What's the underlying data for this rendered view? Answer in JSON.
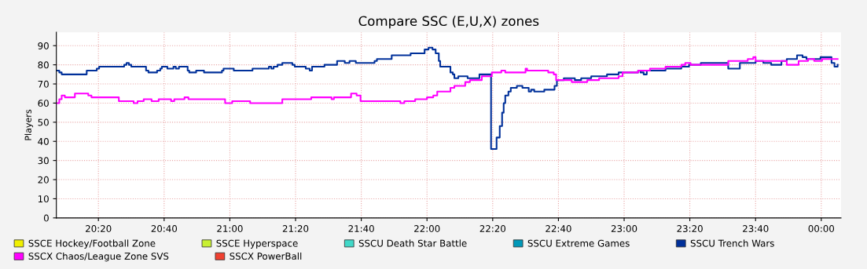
{
  "chart_data": {
    "type": "step",
    "title": "Compare SSC (E,U,X) zones",
    "ylabel": "Players",
    "xlim": [
      20.12,
      24.1
    ],
    "ylim": [
      0,
      97
    ],
    "xticks": [
      {
        "value": 20.3333,
        "label": "20:20"
      },
      {
        "value": 20.6667,
        "label": "20:40"
      },
      {
        "value": 21.0,
        "label": "21:00"
      },
      {
        "value": 21.3333,
        "label": "21:20"
      },
      {
        "value": 21.6667,
        "label": "21:40"
      },
      {
        "value": 22.0,
        "label": "22:00"
      },
      {
        "value": 22.3333,
        "label": "22:20"
      },
      {
        "value": 22.6667,
        "label": "22:40"
      },
      {
        "value": 23.0,
        "label": "23:00"
      },
      {
        "value": 23.3333,
        "label": "23:20"
      },
      {
        "value": 23.6667,
        "label": "23:40"
      },
      {
        "value": 24.0,
        "label": "00:00"
      }
    ],
    "yticks": [
      0,
      10,
      20,
      30,
      40,
      50,
      60,
      70,
      80,
      90
    ],
    "grid": true,
    "legend": "bottom",
    "series": [
      {
        "name": "SSCE Hockey/Football Zone",
        "color": "#f0f000"
      },
      {
        "name": "SSCE Hyperspace",
        "color": "#c8f032"
      },
      {
        "name": "SSCU Death Star Battle",
        "color": "#40d8c8"
      },
      {
        "name": "SSCU Extreme Games",
        "color": "#0098b8"
      },
      {
        "name": "SSCU Trench Wars",
        "color": "#00309a",
        "x": [
          20.123,
          20.135,
          20.147,
          20.266,
          20.274,
          20.313,
          20.325,
          20.337,
          20.452,
          20.464,
          20.476,
          20.488,
          20.5,
          20.563,
          20.575,
          20.587,
          20.619,
          20.631,
          20.647,
          20.655,
          20.675,
          20.683,
          20.706,
          20.714,
          20.726,
          20.742,
          20.77,
          20.786,
          20.794,
          20.821,
          20.829,
          20.861,
          20.869,
          20.948,
          20.96,
          20.968,
          21.012,
          21.02,
          21.107,
          21.115,
          21.187,
          21.198,
          21.21,
          21.222,
          21.242,
          21.266,
          21.306,
          21.317,
          21.329,
          21.369,
          21.385,
          21.405,
          21.417,
          21.472,
          21.48,
          21.536,
          21.544,
          21.571,
          21.583,
          21.607,
          21.631,
          21.639,
          21.722,
          21.734,
          21.746,
          21.813,
          21.821,
          21.909,
          21.917,
          21.976,
          21.988,
          22.008,
          22.028,
          22.044,
          22.06,
          22.067,
          22.107,
          22.119,
          22.131,
          22.139,
          22.159,
          22.194,
          22.206,
          22.258,
          22.266,
          22.317,
          22.325,
          22.345,
          22.353,
          22.369,
          22.381,
          22.389,
          22.397,
          22.413,
          22.425,
          22.456,
          22.484,
          22.516,
          22.528,
          22.544,
          22.583,
          22.595,
          22.635,
          22.647,
          22.659,
          22.683,
          22.694,
          22.734,
          22.75,
          22.782,
          22.833,
          22.913,
          22.972,
          23.032,
          23.071,
          23.083,
          23.099,
          23.115,
          23.151,
          23.21,
          23.29,
          23.329,
          23.389,
          23.508,
          23.528,
          23.567,
          23.587,
          23.647,
          23.667,
          23.706,
          23.746,
          23.786,
          23.798,
          23.825,
          23.869,
          23.877,
          23.905,
          23.925,
          23.996,
          24.036,
          24.052,
          24.067,
          24.083
        ],
        "values": [
          77,
          76,
          75,
          75,
          77,
          77,
          78,
          79,
          79,
          80,
          81,
          80,
          79,
          79,
          77,
          76,
          76,
          77,
          78,
          79,
          79,
          78,
          78,
          79,
          78,
          79,
          79,
          77,
          76,
          76,
          77,
          77,
          76,
          76,
          77,
          78,
          78,
          77,
          77,
          78,
          78,
          79,
          78,
          79,
          80,
          81,
          81,
          80,
          79,
          79,
          78,
          77,
          79,
          79,
          80,
          80,
          82,
          82,
          81,
          82,
          82,
          81,
          81,
          82,
          83,
          83,
          85,
          85,
          86,
          86,
          88,
          89,
          88,
          86,
          82,
          79,
          79,
          76,
          75,
          73,
          74,
          74,
          73,
          73,
          75,
          75,
          36,
          36,
          42,
          48,
          55,
          60,
          64,
          66,
          68,
          69,
          68,
          66,
          67,
          66,
          66,
          67,
          67,
          69,
          72,
          72,
          73,
          73,
          72,
          73,
          74,
          75,
          76,
          76,
          77,
          76,
          75,
          77,
          77,
          78,
          79,
          80,
          81,
          81,
          78,
          78,
          81,
          81,
          82,
          81,
          80,
          80,
          82,
          83,
          83,
          85,
          84,
          83,
          84,
          84,
          81,
          79,
          80
        ]
      },
      {
        "name": "SSCX Chaos/League Zone SVS",
        "color": "#ff00ff",
        "x": [
          20.123,
          20.135,
          20.147,
          20.163,
          20.202,
          20.214,
          20.266,
          20.282,
          20.298,
          20.425,
          20.437,
          20.504,
          20.512,
          20.532,
          20.552,
          20.563,
          20.591,
          20.603,
          20.623,
          20.639,
          20.69,
          20.702,
          20.718,
          20.762,
          20.77,
          20.79,
          20.968,
          20.976,
          21.0,
          21.012,
          21.091,
          21.103,
          21.246,
          21.266,
          21.405,
          21.413,
          21.504,
          21.516,
          21.528,
          21.607,
          21.615,
          21.643,
          21.663,
          21.853,
          21.865,
          21.885,
          21.933,
          21.94,
          22.0,
          22.032,
          22.052,
          22.091,
          22.119,
          22.139,
          22.187,
          22.194,
          22.218,
          22.266,
          22.278,
          22.317,
          22.329,
          22.377,
          22.397,
          22.488,
          22.5,
          22.508,
          22.595,
          22.615,
          22.643,
          22.655,
          22.714,
          22.734,
          22.774,
          22.813,
          22.873,
          22.972,
          22.992,
          23.032,
          23.071,
          23.131,
          23.21,
          23.29,
          23.31,
          23.337,
          23.468,
          23.528,
          23.627,
          23.655,
          23.667,
          23.806,
          23.825,
          23.853,
          23.885,
          23.933,
          23.964,
          24.004,
          24.083
        ],
        "values": [
          60,
          62,
          64,
          63,
          63,
          65,
          65,
          64,
          63,
          63,
          61,
          61,
          60,
          61,
          61,
          62,
          62,
          61,
          61,
          62,
          62,
          61,
          62,
          62,
          63,
          62,
          62,
          60,
          60,
          61,
          61,
          60,
          60,
          62,
          62,
          63,
          63,
          62,
          63,
          63,
          65,
          64,
          61,
          61,
          60,
          61,
          61,
          62,
          63,
          64,
          66,
          66,
          68,
          69,
          69,
          71,
          72,
          72,
          74,
          74,
          76,
          77,
          76,
          76,
          78,
          77,
          77,
          76,
          75,
          72,
          72,
          71,
          71,
          72,
          73,
          74,
          76,
          76,
          77,
          78,
          79,
          80,
          81,
          80,
          80,
          82,
          83,
          84,
          82,
          82,
          80,
          80,
          82,
          83,
          82,
          83,
          83
        ]
      },
      {
        "name": "SSCX PowerBall",
        "color": "#f04030"
      }
    ]
  }
}
